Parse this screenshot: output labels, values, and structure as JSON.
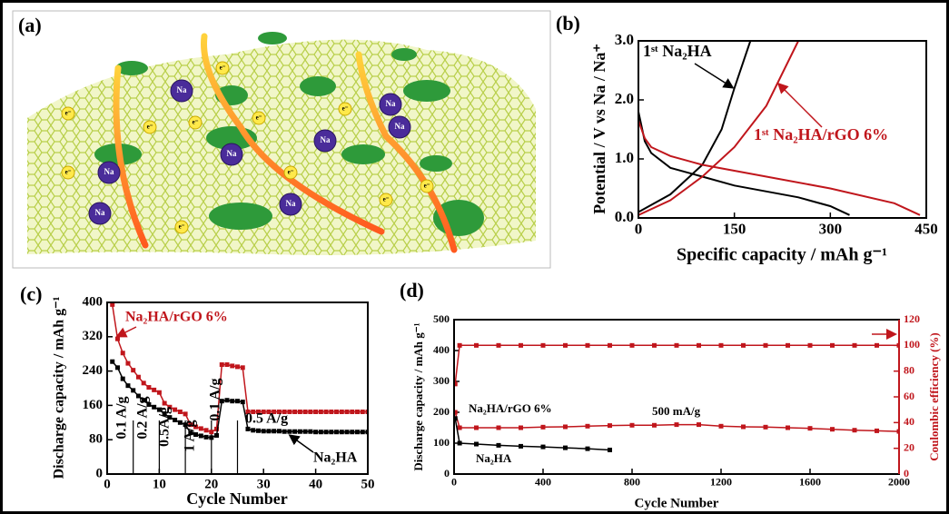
{
  "illustration": {
    "panel": "(a)",
    "sodium": "Na",
    "electron": "e⁻"
  },
  "chart_data": [
    {
      "type": "line",
      "panel": "(b)",
      "xlabel": "Specific capacity / mAh g⁻¹",
      "ylabel": "Potential / V vs Na / Na⁺",
      "xlim": [
        0,
        450
      ],
      "xticks": [
        0,
        150,
        300,
        450
      ],
      "ylim": [
        0,
        3
      ],
      "yticks": [
        {
          "value": 0,
          "label": "0.0"
        },
        {
          "value": 1,
          "label": "1.0"
        },
        {
          "value": 2,
          "label": "2.0"
        },
        {
          "value": 3,
          "label": "3.0"
        }
      ],
      "markers": false,
      "series": [
        {
          "color": "#000000",
          "x": [
            0,
            10,
            20,
            50,
            100,
            150,
            200,
            250,
            300,
            330
          ],
          "values": [
            1.8,
            1.3,
            1.1,
            0.85,
            0.7,
            0.55,
            0.45,
            0.35,
            0.2,
            0.05
          ]
        },
        {
          "color": "#000000",
          "x": [
            0,
            50,
            100,
            130,
            150,
            175
          ],
          "values": [
            0.1,
            0.4,
            0.9,
            1.5,
            2.2,
            3.0
          ]
        },
        {
          "color": "#c0161c",
          "x": [
            0,
            10,
            20,
            50,
            100,
            200,
            300,
            400,
            440
          ],
          "values": [
            1.65,
            1.35,
            1.2,
            1.05,
            0.9,
            0.7,
            0.5,
            0.25,
            0.05
          ]
        },
        {
          "color": "#c0161c",
          "x": [
            0,
            50,
            100,
            150,
            200,
            250
          ],
          "values": [
            0.05,
            0.3,
            0.7,
            1.2,
            1.9,
            3.0
          ]
        }
      ],
      "annotations": [
        {
          "text": "1ˢᵗ Na₂HA",
          "color": "#000000"
        },
        {
          "text": "1ˢᵗ Na₂HA/rGO 6%",
          "color": "#c0161c"
        }
      ]
    },
    {
      "type": "line",
      "panel": "(c)",
      "xlabel": "Cycle Number",
      "ylabel": "Discharge capacity / mAh g⁻¹",
      "xlim": [
        0,
        50
      ],
      "xticks": [
        0,
        10,
        20,
        30,
        40,
        50
      ],
      "ylim": [
        0,
        400
      ],
      "yticks": [
        0,
        80,
        160,
        240,
        320,
        400
      ],
      "markers": true,
      "dividers": [
        5,
        10,
        15,
        20,
        25
      ],
      "x": [
        1,
        2,
        3,
        4,
        5,
        6,
        7,
        8,
        9,
        10,
        11,
        12,
        13,
        14,
        15,
        16,
        17,
        18,
        19,
        20,
        21,
        22,
        23,
        24,
        25,
        26,
        27,
        28,
        29,
        30,
        31,
        32,
        33,
        34,
        35,
        36,
        37,
        38,
        39,
        40,
        41,
        42,
        43,
        44,
        45,
        46,
        47,
        48,
        49,
        50
      ],
      "series": [
        {
          "color": "#c0161c",
          "values": [
            395,
            315,
            282,
            258,
            242,
            226,
            212,
            202,
            196,
            190,
            165,
            156,
            150,
            145,
            140,
            115,
            110,
            106,
            102,
            98,
            105,
            255,
            255,
            252,
            250,
            248,
            145,
            145,
            145,
            145,
            145,
            145,
            145,
            145,
            145,
            145,
            145,
            145,
            145,
            145,
            145,
            145,
            145,
            145,
            145,
            145,
            145,
            145,
            145,
            145
          ]
        },
        {
          "color": "#000000",
          "values": [
            262,
            248,
            222,
            206,
            195,
            182,
            172,
            162,
            156,
            150,
            140,
            132,
            126,
            120,
            115,
            96,
            92,
            89,
            86,
            85,
            90,
            170,
            172,
            170,
            170,
            168,
            105,
            102,
            101,
            100,
            100,
            100,
            100,
            99,
            99,
            99,
            99,
            99,
            99,
            98,
            98,
            98,
            98,
            98,
            98,
            98,
            98,
            98,
            98,
            98
          ]
        }
      ],
      "annotations": [
        {
          "text": "Na₂HA/rGO 6%",
          "color": "#c0161c"
        },
        {
          "text": "0.1 A/g",
          "color": "#000000"
        },
        {
          "text": "0.2 A/g",
          "color": "#000000"
        },
        {
          "text": "0.5A/g",
          "color": "#000000"
        },
        {
          "text": "1 A/g",
          "color": "#000000"
        },
        {
          "text": "0.1 A/g",
          "color": "#000000"
        },
        {
          "text": "0.5 A/g",
          "color": "#000000"
        },
        {
          "text": "Na₂HA",
          "color": "#000000"
        }
      ]
    },
    {
      "type": "line",
      "panel": "(d)",
      "xlabel": "Cycle Number",
      "ylabel": "Discharge capacity / mAh g⁻¹",
      "y2label": "Coulombic efficiency (%)",
      "xlim": [
        0,
        2000
      ],
      "xticks": [
        0,
        400,
        800,
        1200,
        1600,
        2000
      ],
      "ylim": [
        0,
        500
      ],
      "yticks": [
        0,
        100,
        200,
        300,
        400,
        500
      ],
      "y2lim": [
        0,
        120
      ],
      "y2ticks": [
        0,
        20,
        40,
        60,
        80,
        100,
        120
      ],
      "markers": true,
      "series": [
        {
          "color": "#c0161c",
          "x": [
            5,
            25,
            100,
            200,
            300,
            400,
            500,
            600,
            700,
            800,
            900,
            1000,
            1100,
            1200,
            1300,
            1400,
            1500,
            1600,
            1700,
            1800,
            1900,
            2000
          ],
          "values": [
            200,
            150,
            150,
            150,
            150,
            152,
            153,
            155,
            157,
            158,
            158,
            160,
            160,
            155,
            153,
            152,
            150,
            148,
            145,
            142,
            140,
            138
          ]
        },
        {
          "color": "#000000",
          "x": [
            5,
            25,
            100,
            200,
            300,
            400,
            500,
            600,
            700
          ],
          "values": [
            180,
            100,
            97,
            93,
            90,
            88,
            85,
            82,
            78
          ]
        },
        {
          "color": "#c0161c",
          "axis": "y2",
          "x": [
            5,
            25,
            100,
            200,
            300,
            400,
            500,
            600,
            700,
            800,
            900,
            1000,
            1100,
            1200,
            1300,
            1400,
            1500,
            1600,
            1700,
            1800,
            1900,
            2000
          ],
          "values": [
            70,
            100,
            100,
            100,
            100,
            100,
            100,
            100,
            100,
            100,
            100,
            100,
            100,
            100,
            100,
            100,
            100,
            100,
            100,
            100,
            100,
            100
          ]
        }
      ],
      "annotations": [
        {
          "text": "Na₂HA/rGO 6%",
          "color": "#000000"
        },
        {
          "text": "500 mA/g",
          "color": "#000000"
        },
        {
          "text": "Na₂HA",
          "color": "#000000"
        }
      ]
    }
  ]
}
